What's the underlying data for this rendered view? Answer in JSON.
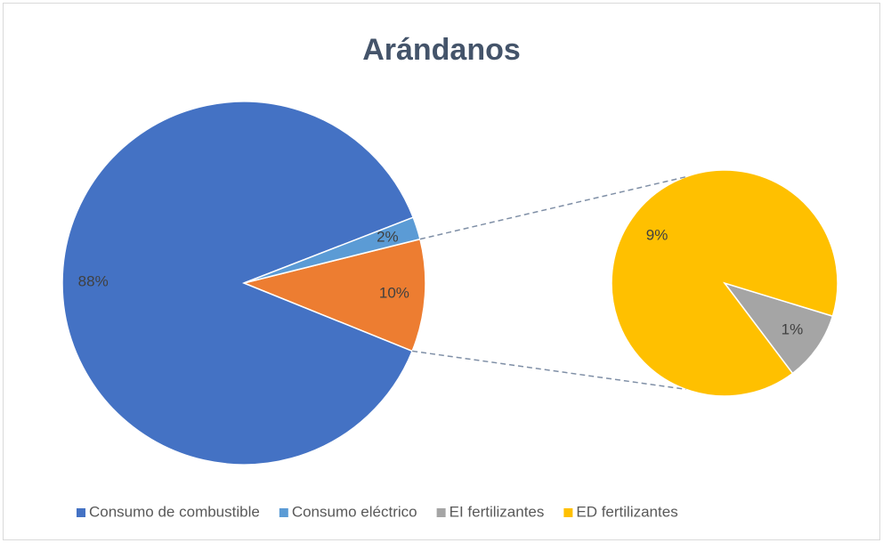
{
  "chart_data": {
    "type": "pie_of_pie",
    "title": "Arándanos",
    "categories": [
      "Consumo de combustible",
      "Consumo eléctrico",
      "EI fertilizantes",
      "ED fertilizantes"
    ],
    "values": [
      88,
      2,
      1,
      9
    ],
    "value_labels": [
      "88%",
      "2%",
      "1%",
      "9%"
    ],
    "colors": [
      "#4472c4",
      "#5b9bd5",
      "#a5a5a5",
      "#ffc000"
    ],
    "secondary_count": 2,
    "other_value": 10,
    "other_value_label": "10%",
    "other_color": "#ed7d31",
    "legend": "bottom"
  }
}
